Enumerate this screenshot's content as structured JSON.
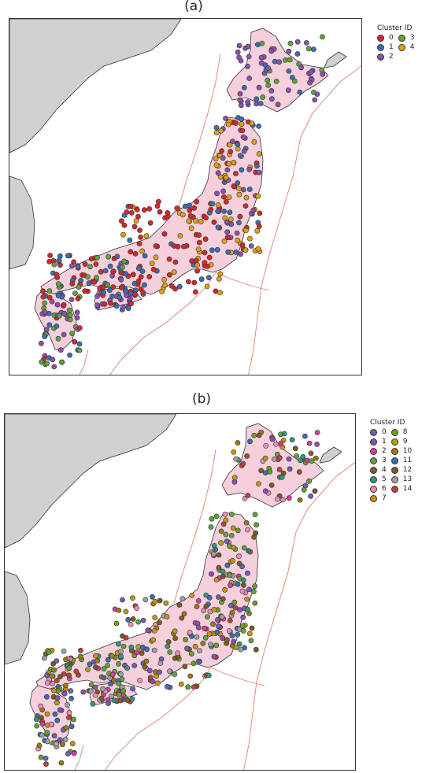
{
  "panels": [
    {
      "title": "(a)",
      "legend_title": "Cluster ID",
      "clusters": [
        {
          "id": "0",
          "color": "#d62728"
        },
        {
          "id": "1",
          "color": "#3a6fb0"
        },
        {
          "id": "2",
          "color": "#8e4fb0"
        },
        {
          "id": "3",
          "color": "#5fa33a"
        },
        {
          "id": "4",
          "color": "#e0a010"
        }
      ]
    },
    {
      "title": "(b)",
      "legend_title": "Cluster ID",
      "clusters": [
        {
          "id": "0",
          "color": "#6a5fc0"
        },
        {
          "id": "1",
          "color": "#8e4fb0"
        },
        {
          "id": "2",
          "color": "#d63ca0"
        },
        {
          "id": "3",
          "color": "#5fa33a"
        },
        {
          "id": "4",
          "color": "#8a5a1a"
        },
        {
          "id": "5",
          "color": "#2a9a7a"
        },
        {
          "id": "6",
          "color": "#f08ab8"
        },
        {
          "id": "7",
          "color": "#d09010"
        },
        {
          "id": "8",
          "color": "#6aa020"
        },
        {
          "id": "9",
          "color": "#b0a010"
        },
        {
          "id": "10",
          "color": "#9a7a10"
        },
        {
          "id": "11",
          "color": "#3a6fb0"
        },
        {
          "id": "12",
          "color": "#7a5a20"
        },
        {
          "id": "13",
          "color": "#a0a0a0"
        },
        {
          "id": "14",
          "color": "#c04040"
        }
      ]
    }
  ],
  "colors": {
    "land_foreign": "#d0d0d0",
    "land_japan": "#f5d0dc",
    "ocean": "#ffffff",
    "plate_boundary": "#e08070",
    "coastline": "#333333"
  }
}
